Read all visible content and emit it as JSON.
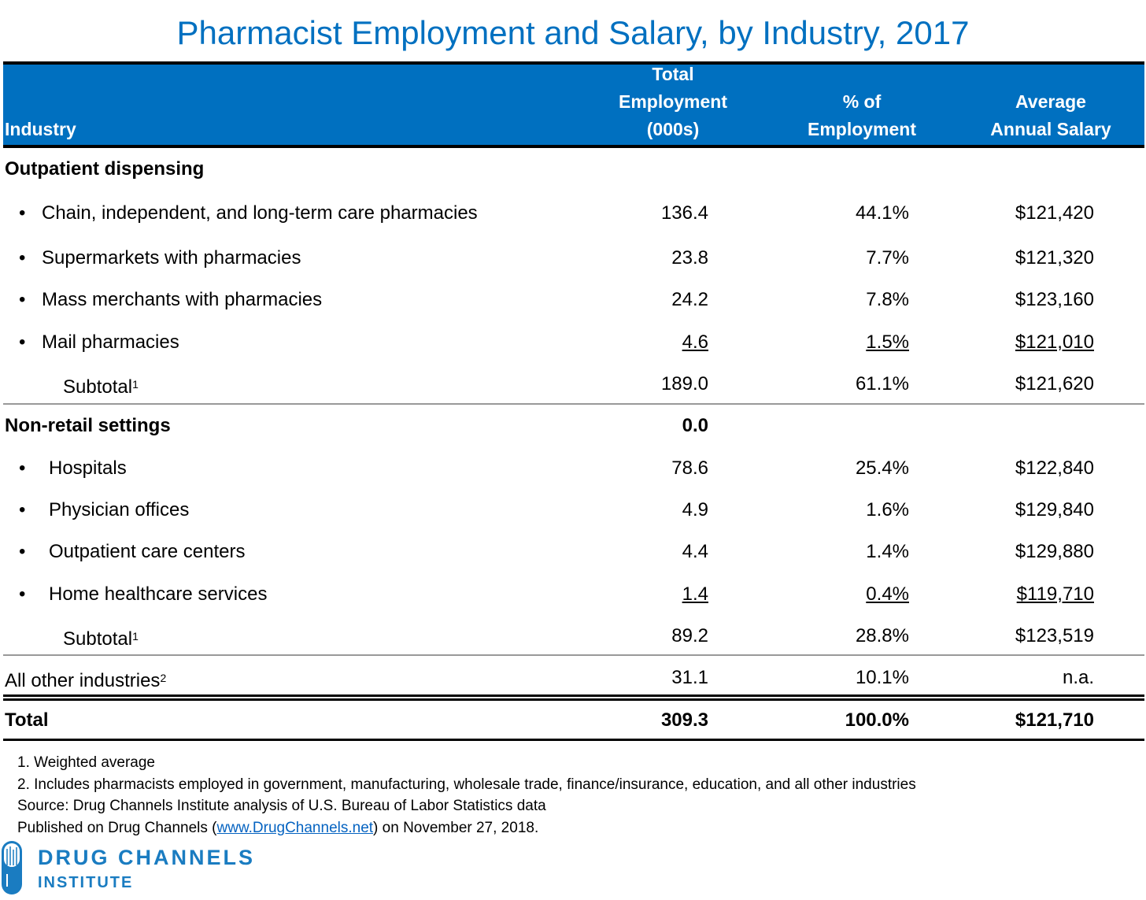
{
  "title": "Pharmacist Employment and Salary, by Industry, 2017",
  "header": {
    "industry": "Industry",
    "employment": "Total\nEmployment\n(000s)",
    "pct": "% of\nEmployment",
    "salary": "Average\nAnnual Salary"
  },
  "rows": [
    {
      "type": "section",
      "label": "Outpatient dispensing",
      "emp": "",
      "pct": "",
      "salary": ""
    },
    {
      "type": "bullet",
      "label": "Chain, independent, and long-term care pharmacies",
      "emp": "136.4",
      "pct": "44.1%",
      "salary": "$121,420"
    },
    {
      "type": "bullet",
      "label": "Supermarkets with pharmacies",
      "emp": "23.8",
      "pct": "7.7%",
      "salary": "$121,320"
    },
    {
      "type": "bullet",
      "label": "Mass merchants with pharmacies",
      "emp": "24.2",
      "pct": "7.8%",
      "salary": "$123,160"
    },
    {
      "type": "bullet",
      "label": "Mail pharmacies",
      "emp": "4.6",
      "pct": "1.5%",
      "salary": "$121,010",
      "underline": true
    },
    {
      "type": "subtotal",
      "label": "Subtotal",
      "sup": "1",
      "emp": "189.0",
      "pct": "61.1%",
      "salary": "$121,620"
    },
    {
      "type": "section",
      "label": "Non-retail settings",
      "emp": "0.0",
      "pct": "",
      "salary": ""
    },
    {
      "type": "bullet2",
      "label": "Hospitals",
      "emp": "78.6",
      "pct": "25.4%",
      "salary": "$122,840"
    },
    {
      "type": "bullet2",
      "label": "Physician offices",
      "emp": "4.9",
      "pct": "1.6%",
      "salary": "$129,840"
    },
    {
      "type": "bullet2",
      "label": "Outpatient care centers",
      "emp": "4.4",
      "pct": "1.4%",
      "salary": "$129,880"
    },
    {
      "type": "bullet2",
      "label": "Home healthcare services",
      "emp": "1.4",
      "pct": "0.4%",
      "salary": "$119,710",
      "underline": true
    },
    {
      "type": "subtotal",
      "label": "Subtotal",
      "sup": "1",
      "emp": "89.2",
      "pct": "28.8%",
      "salary": "$123,519"
    },
    {
      "type": "plain",
      "label": "All other industries",
      "sup": "2",
      "emp": "31.1",
      "pct": "10.1%",
      "salary": "n.a."
    },
    {
      "type": "total",
      "label": "Total",
      "emp": "309.3",
      "pct": "100.0%",
      "salary": "$121,710"
    }
  ],
  "bullet_char": "•",
  "notes": {
    "n1": "1. Weighted average",
    "n2": "2. Includes pharmacists employed in government, manufacturing, wholesale trade, finance/insurance, education, and all other industries",
    "source": "Source: Drug Channels Institute analysis of U.S. Bureau of Labor Statistics data",
    "published_pre": "Published on Drug Channels (",
    "published_link": "www.DrugChannels.net",
    "published_post": ") on November 27, 2018."
  },
  "logo": {
    "line1": "DRUG CHANNELS",
    "line2": "INSTITUTE"
  },
  "colors": {
    "brand_blue": "#0070C0",
    "link": "#0563C1"
  }
}
